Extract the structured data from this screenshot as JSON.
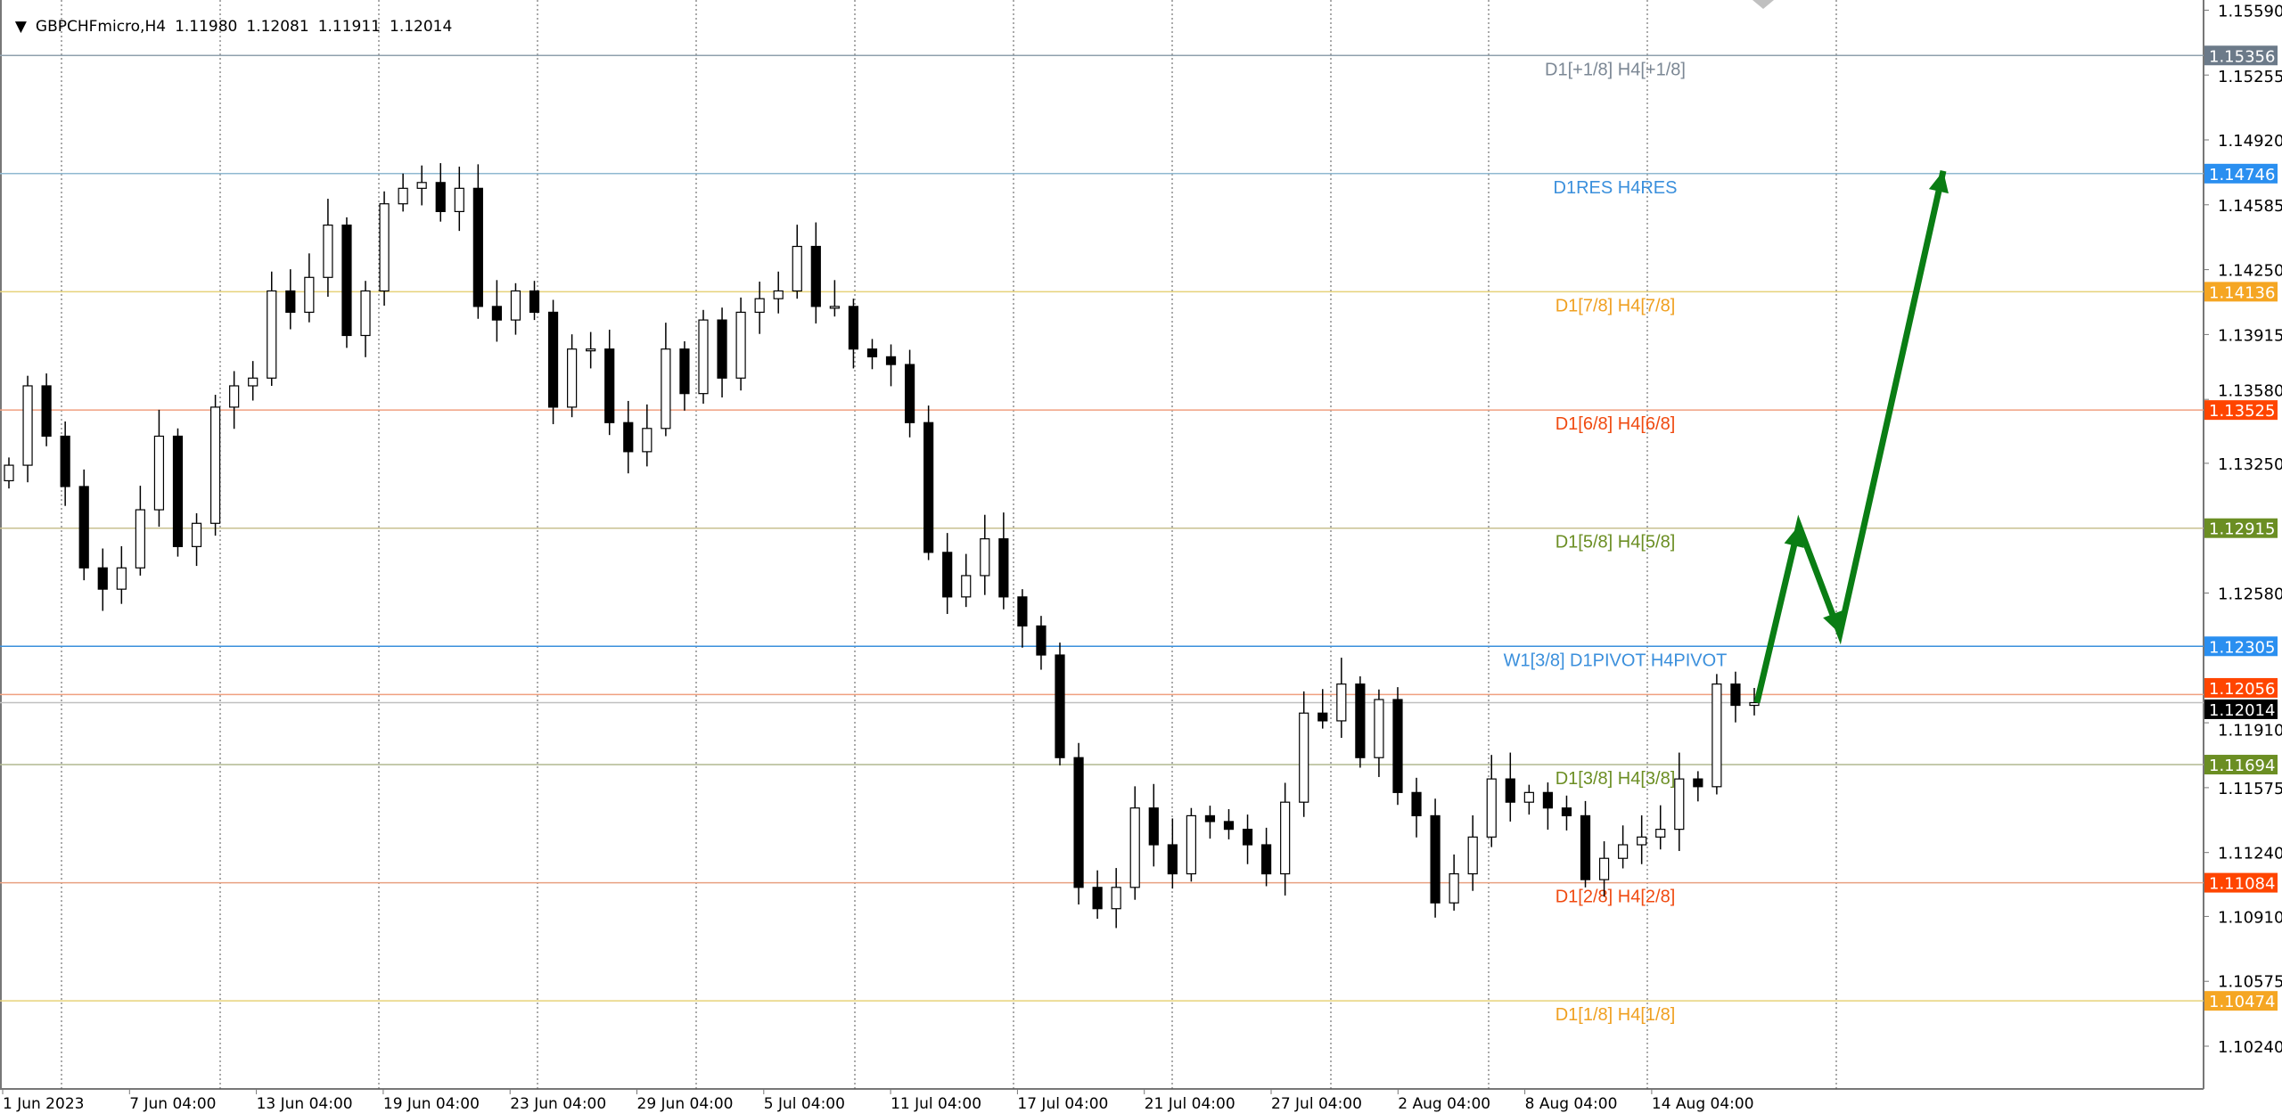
{
  "header": {
    "collapse_icon": "triangle-down-icon",
    "symbol": "GBPCHFmicro,H4",
    "open": "1.11980",
    "high": "1.12081",
    "low": "1.11911",
    "close": "1.12014"
  },
  "colors": {
    "bull_body": "#ffffff",
    "bear_body": "#000000",
    "candle_outline": "#000000",
    "grid": "#555555",
    "arrow": "#0a7d14",
    "bid_label_bg": "#000000"
  },
  "chart_data": {
    "type": "candlestick",
    "y_ticks": [
      "1.15590",
      "1.15255",
      "1.14920",
      "1.14585",
      "1.14250",
      "1.13915",
      "1.13580",
      "1.13250",
      "1.12580",
      "1.11910",
      "1.11575",
      "1.11240",
      "1.10910",
      "1.10575",
      "1.10240"
    ],
    "ylim": [
      1.0995,
      1.1575
    ],
    "x_ticks": [
      "1 Jun 2023",
      "7 Jun 04:00",
      "13 Jun 04:00",
      "19 Jun 04:00",
      "23 Jun 04:00",
      "29 Jun 04:00",
      "5 Jul 04:00",
      "11 Jul 04:00",
      "17 Jul 04:00",
      "21 Jul 04:00",
      "27 Jul 04:00",
      "2 Aug 04:00",
      "8 Aug 04:00",
      "14 Aug 04:00"
    ],
    "closes": [
      1.1324,
      1.1365,
      1.1339,
      1.1313,
      1.1271,
      1.126,
      1.1271,
      1.1301,
      1.1339,
      1.1282,
      1.1294,
      1.1354,
      1.1365,
      1.1369,
      1.1414,
      1.1403,
      1.1421,
      1.1448,
      1.1391,
      1.1414,
      1.1459,
      1.1467,
      1.147,
      1.1455,
      1.1467,
      1.1406,
      1.1399,
      1.1414,
      1.1403,
      1.1354,
      1.1384,
      1.1384,
      1.1346,
      1.1331,
      1.1343,
      1.1384,
      1.1361,
      1.1399,
      1.1369,
      1.1403,
      1.141,
      1.1414,
      1.1437,
      1.1406,
      1.1406,
      1.1384,
      1.138,
      1.1376,
      1.1346,
      1.1279,
      1.1256,
      1.1267,
      1.1286,
      1.1256,
      1.1241,
      1.1226,
      1.1173,
      1.1106,
      1.1095,
      1.1106,
      1.1147,
      1.1128,
      1.1113,
      1.1143,
      1.114,
      1.1136,
      1.1128,
      1.1113,
      1.115,
      1.1196,
      1.1192,
      1.1211,
      1.1173,
      1.1203,
      1.1155,
      1.1143,
      1.1098,
      1.1113,
      1.1132,
      1.1162,
      1.115,
      1.1155,
      1.1147,
      1.1143,
      1.111,
      1.1121,
      1.1128,
      1.1132,
      1.1136,
      1.1162,
      1.1158,
      1.1211,
      1.12,
      1.12014
    ],
    "levels": [
      {
        "label": "D1[+1/8] H4[+1/8]",
        "price": 1.15356,
        "price_label": "1.15356",
        "line": "#8fa0ad",
        "text": "#7b8794",
        "tag": "#6c7a89"
      },
      {
        "label": "D1RES H4RES",
        "price": 1.14746,
        "price_label": "1.14746",
        "line": "#8fb8d0",
        "text": "#3a8fdc",
        "tag": "#2a8ff0"
      },
      {
        "label": "D1[7/8] H4[7/8]",
        "price": 1.14136,
        "price_label": "1.14136",
        "line": "#e6d27a",
        "text": "#f0a020",
        "tag": "#f5a623"
      },
      {
        "label": "D1[6/8] H4[6/8]",
        "price": 1.13525,
        "price_label": "1.13525",
        "line": "#f0a080",
        "text": "#f04a10",
        "tag": "#ff4500"
      },
      {
        "label": "D1[5/8] H4[5/8]",
        "price": 1.12915,
        "price_label": "1.12915",
        "line": "#c8c090",
        "text": "#6b8e23",
        "tag": "#6b8e23"
      },
      {
        "label": "W1[3/8] D1PIVOT H4PIVOT",
        "price": 1.12305,
        "price_label": "1.12305",
        "line": "#3a8fdc",
        "text": "#3a8fdc",
        "tag": "#2a8ff0"
      },
      {
        "label": "D1[3/8] H4[3/8]",
        "price": 1.11694,
        "price_label": "1.11694",
        "line": "#b0b890",
        "text": "#6b8e23",
        "tag": "#6b8e23"
      },
      {
        "label": "D1[2/8] H4[2/8]",
        "price": 1.11084,
        "price_label": "1.11084",
        "line": "#e8a080",
        "text": "#f04a10",
        "tag": "#ff4500"
      },
      {
        "label": "D1[1/8] H4[1/8]",
        "price": 1.10474,
        "price_label": "1.10474",
        "line": "#e6d27a",
        "text": "#f0a020",
        "tag": "#f5a623"
      }
    ],
    "extra_line": {
      "price": 1.12056,
      "price_label": "1.12056",
      "color": "#ff4500"
    },
    "bid": {
      "price": 1.12014,
      "price_label": "1.12014"
    },
    "forecast_arrow_prices": [
      1.12014,
      1.1293,
      1.1237,
      1.1476
    ]
  }
}
